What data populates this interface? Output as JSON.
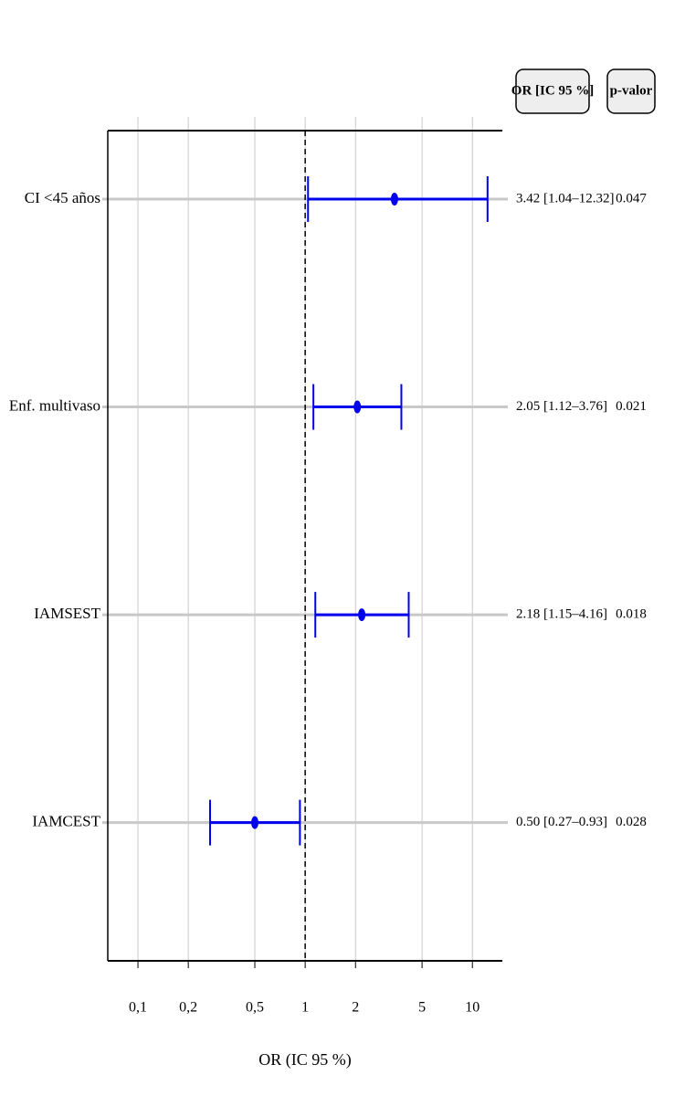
{
  "chart_data": {
    "type": "forest",
    "x_label": "OR (IC 95 %)",
    "column_headers": [
      "OR [IC 95 %]",
      "p-valor"
    ],
    "categories": [
      "CI <45 años",
      "Enf. multivaso",
      "IAMSEST",
      "IAMCEST"
    ],
    "values": [
      3.42,
      2.05,
      2.18,
      0.5
    ],
    "lower": [
      1.04,
      1.12,
      1.15,
      0.27
    ],
    "upper": [
      12.32,
      3.76,
      4.16,
      0.93
    ],
    "value_labels": [
      "3.42 [1.04–12.32]",
      "2.05 [1.12–3.76]",
      "2.18 [1.15–4.16]",
      "0.50 [0.27–0.93]"
    ],
    "p_values": [
      0.047,
      0.021,
      0.018,
      0.028
    ],
    "color": "#0000ee",
    "log_x": true,
    "reference_line": 1,
    "xlim": [
      0.066,
      15.1
    ],
    "xticks": [
      {
        "value": 0.1,
        "label": "0,1"
      },
      {
        "value": 0.2,
        "label": "0,2"
      },
      {
        "value": 0.5,
        "label": "0,5"
      },
      1,
      2,
      5,
      10
    ],
    "grid": true
  }
}
